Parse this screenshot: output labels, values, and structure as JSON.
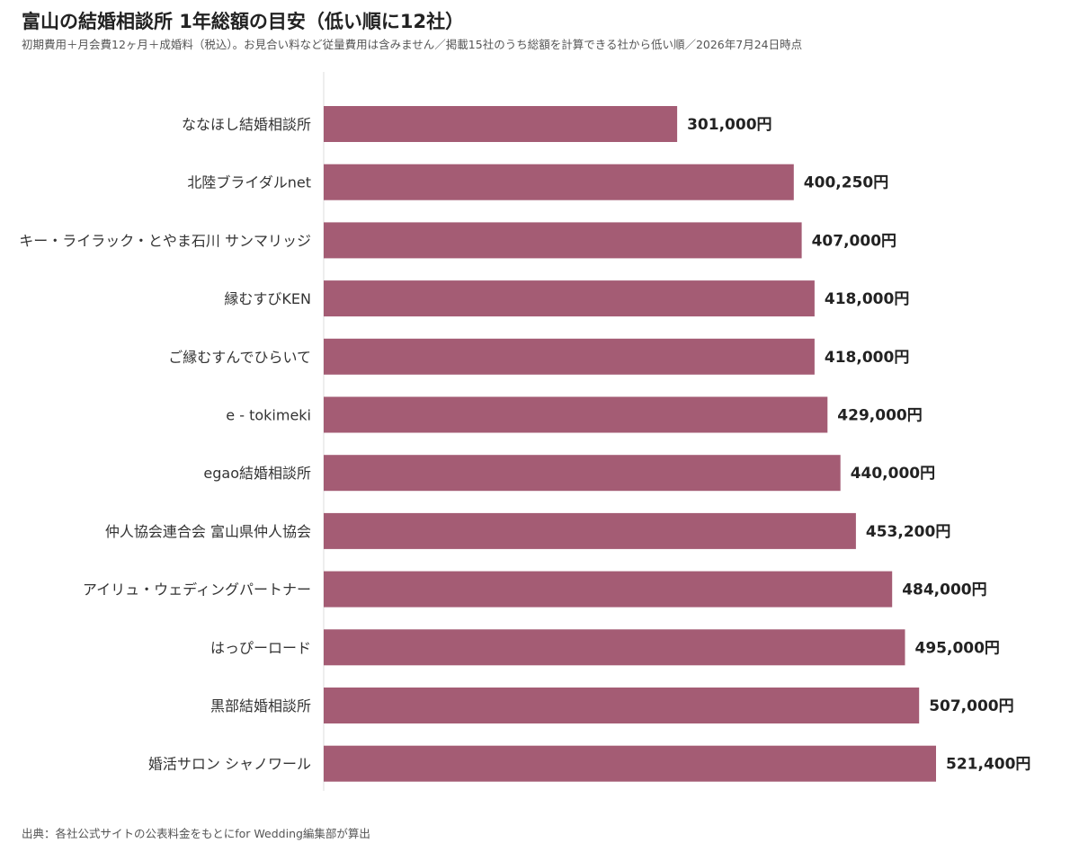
{
  "title": "富山の結婚相談所 1年総額の目安（低い順に12社）",
  "subtitle": "初期費用＋月会費12ヶ月＋成婚料（税込）。お見合い料など従量費用は含みません／掲載15社のうち総額を計算できる社から低い順／2026年7月24日時点",
  "source": "出典：各社公式サイトの公表料金をもとにfor Wedding編集部が算出",
  "colors": {
    "bar": "#a45c74",
    "axis": "#dddddd"
  },
  "chart_data": {
    "type": "bar",
    "orientation": "horizontal",
    "categories": [
      "ななほし結婚相談所",
      "北陸ブライダルnet",
      "キー・ライラック・とやま石川 サンマリッジ",
      "縁むすびKEN",
      "ご縁むすんでひらいて",
      "e - tokimeki",
      "egao結婚相談所",
      "仲人協会連合会 富山県仲人協会",
      "アイリュ・ウェディングパートナー",
      "はっぴーロード",
      "黒部結婚相談所",
      "婚活サロン シャノワール"
    ],
    "values": [
      301000,
      400250,
      407000,
      418000,
      418000,
      429000,
      440000,
      453200,
      484000,
      495000,
      507000,
      521400
    ],
    "value_labels": [
      "301,000円",
      "400,250円",
      "407,000円",
      "418,000円",
      "418,000円",
      "429,000円",
      "440,000円",
      "453,200円",
      "484,000円",
      "495,000円",
      "507,000円",
      "521,400円"
    ],
    "xlim": [
      0,
      521400
    ],
    "grid": false,
    "legend": "none"
  }
}
